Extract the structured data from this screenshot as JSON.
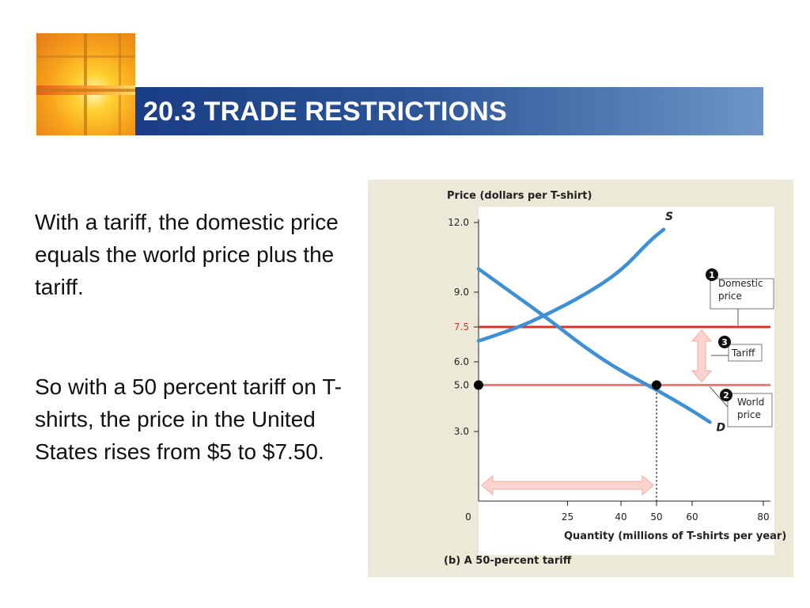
{
  "slide": {
    "title": "20.3 TRADE RESTRICTIONS",
    "paragraphs": [
      "With a tariff, the domestic price equals the world price plus the tariff.",
      "So with a 50 percent tariff on T-shirts, the price in the United States rises from $5 to $7.50."
    ]
  },
  "colors": {
    "title_bar_start": "#1a3d85",
    "title_bar_end": "#6e95c6",
    "curve_blue": "#3d8fd6",
    "domestic_price_line": "#d9342b",
    "world_price_line": "#e77a72",
    "arrow_pink": "#fbd3cf"
  },
  "chart_data": {
    "type": "line",
    "ylabel": "Price (dollars per T-shirt)",
    "xlabel": "Quantity (millions of T-shirts per year)",
    "caption": "(b) A 50-percent tariff",
    "xlim": [
      0,
      80
    ],
    "ylim": [
      0,
      12
    ],
    "x_ticks": [
      "0",
      "25",
      "40",
      "50",
      "60",
      "80"
    ],
    "y_ticks": [
      "3.0",
      "5.0",
      "6.0",
      "7.5",
      "9.0",
      "12.0"
    ],
    "y_tick_values": [
      3.0,
      5.0,
      6.0,
      7.5,
      9.0,
      12.0
    ],
    "x_tick_values": [
      0,
      25,
      40,
      50,
      60,
      80
    ],
    "series": [
      {
        "name": "S",
        "points": [
          [
            0,
            6.9
          ],
          [
            10,
            7.4
          ],
          [
            20,
            8.1
          ],
          [
            30,
            8.9
          ],
          [
            40,
            9.9
          ],
          [
            48,
            11.2
          ],
          [
            52,
            11.7
          ]
        ]
      },
      {
        "name": "D",
        "points": [
          [
            0,
            10.0
          ],
          [
            10,
            8.9
          ],
          [
            20,
            7.8
          ],
          [
            30,
            6.6
          ],
          [
            40,
            5.6
          ],
          [
            50,
            4.8
          ],
          [
            60,
            3.9
          ],
          [
            65,
            3.4
          ]
        ]
      }
    ],
    "domestic_price": 7.5,
    "world_price": 5.0,
    "equilibrium_point": [
      50,
      5.0
    ],
    "imports_range": [
      0,
      50
    ],
    "annotations": [
      {
        "num": "1",
        "text": [
          "Domestic",
          "price"
        ]
      },
      {
        "num": "2",
        "text": [
          "World",
          "price"
        ]
      },
      {
        "num": "3",
        "text": [
          "Tariff"
        ]
      }
    ]
  }
}
